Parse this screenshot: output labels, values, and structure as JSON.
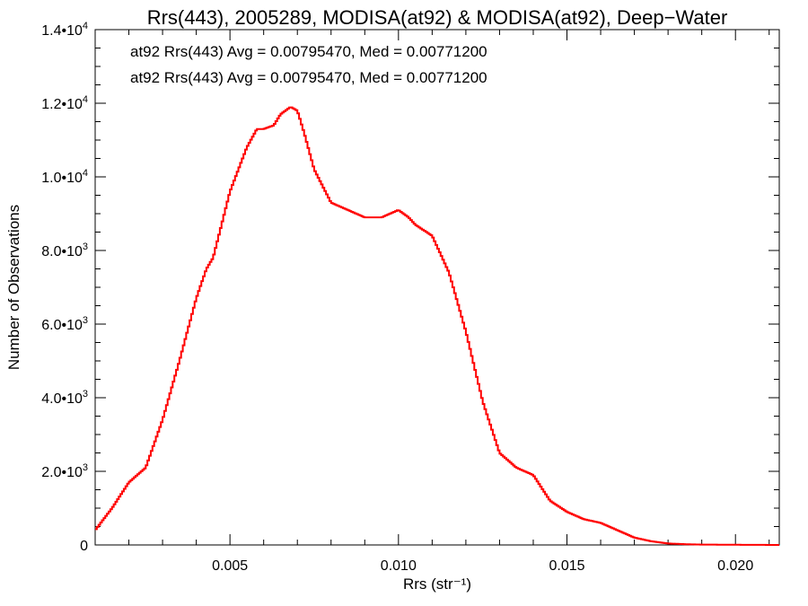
{
  "chart_data": {
    "type": "line",
    "title": "Rrs(443), 2005289, MODISA(at92) & MODISA(at92), Deep−Water",
    "xlabel": "Rrs (str⁻¹)",
    "ylabel": "Number of Observations",
    "xlim": [
      0.001,
      0.0213
    ],
    "ylim": [
      0,
      14000
    ],
    "x_ticks": [
      {
        "value": 0.005,
        "label": "0.005"
      },
      {
        "value": 0.01,
        "label": "0.010"
      },
      {
        "value": 0.015,
        "label": "0.015"
      },
      {
        "value": 0.02,
        "label": "0.020"
      }
    ],
    "y_ticks": [
      {
        "value": 0,
        "mant": "0",
        "exp": ""
      },
      {
        "value": 2000,
        "mant": "2.0•10",
        "exp": "3"
      },
      {
        "value": 4000,
        "mant": "4.0•10",
        "exp": "3"
      },
      {
        "value": 6000,
        "mant": "6.0•10",
        "exp": "3"
      },
      {
        "value": 8000,
        "mant": "8.0•10",
        "exp": "3"
      },
      {
        "value": 10000,
        "mant": "1.0•10",
        "exp": "4"
      },
      {
        "value": 12000,
        "mant": "1.2•10",
        "exp": "4"
      },
      {
        "value": 14000,
        "mant": "1.4•10",
        "exp": "4"
      }
    ],
    "legend": [
      {
        "text": "at92 Rrs(443) Avg = 0.00795470, Med = 0.00771200",
        "color": "#000000"
      },
      {
        "text": "at92 Rrs(443) Avg = 0.00795470, Med = 0.00771200",
        "color": "#ff0000"
      }
    ],
    "legend_position": "top-left",
    "series": [
      {
        "color": "#ff0000",
        "step": true,
        "x": [
          0.001,
          0.0015,
          0.002,
          0.0025,
          0.003,
          0.0035,
          0.004,
          0.0043,
          0.0045,
          0.005,
          0.0055,
          0.0058,
          0.006,
          0.0063,
          0.0065,
          0.0068,
          0.007,
          0.0072,
          0.0075,
          0.008,
          0.0085,
          0.009,
          0.0095,
          0.01,
          0.0103,
          0.0105,
          0.011,
          0.0115,
          0.012,
          0.0125,
          0.013,
          0.0135,
          0.014,
          0.0145,
          0.015,
          0.0155,
          0.016,
          0.0165,
          0.017,
          0.0175,
          0.018,
          0.0185,
          0.019,
          0.02,
          0.0213
        ],
        "y": [
          400,
          1000,
          1700,
          2100,
          3400,
          5000,
          6700,
          7500,
          7800,
          9600,
          10800,
          11300,
          11300,
          11400,
          11700,
          11900,
          11800,
          11200,
          10200,
          9300,
          9100,
          8900,
          8900,
          9100,
          8900,
          8700,
          8400,
          7400,
          5800,
          3900,
          2500,
          2100,
          1900,
          1200,
          900,
          700,
          600,
          400,
          200,
          100,
          40,
          20,
          10,
          5,
          0
        ]
      }
    ]
  }
}
